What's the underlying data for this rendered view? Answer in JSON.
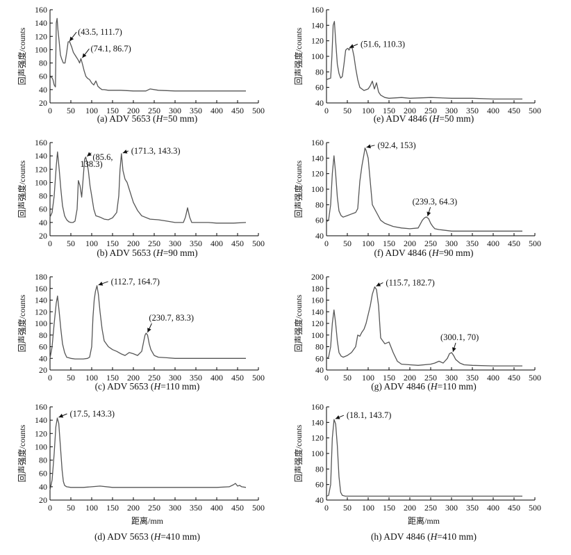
{
  "chart_data": [
    {
      "type": "line",
      "caption": {
        "prefix": "(a) ADV 5653 (",
        "var": "H",
        "suffix": "=50 mm)"
      },
      "ylabel": "回声强度/counts",
      "xlabel": "",
      "xlim": [
        0,
        500
      ],
      "ylim": [
        20,
        160
      ],
      "xticks": [
        "0",
        "50",
        "100",
        "150",
        "200",
        "250",
        "300",
        "350",
        "400",
        "450",
        "500"
      ],
      "yticks": [
        "20",
        "40",
        "60",
        "80",
        "100",
        "120",
        "140",
        "160"
      ],
      "series": [
        {
          "name": "echo",
          "x": [
            0,
            3,
            7,
            10,
            13,
            15,
            17,
            19,
            22,
            25,
            28,
            32,
            36,
            40,
            43.5,
            47,
            52,
            56,
            60,
            64,
            68,
            71,
            74.1,
            78,
            82,
            86,
            90,
            95,
            100,
            105,
            110,
            115,
            120,
            125,
            130,
            140,
            150,
            170,
            200,
            230,
            240,
            260,
            300,
            350,
            400,
            440,
            470
          ],
          "y": [
            57,
            60,
            55,
            47,
            44,
            140,
            147,
            130,
            112,
            92,
            86,
            80,
            80,
            96,
            111.7,
            112,
            104,
            96,
            92,
            88,
            84,
            80,
            86.7,
            78,
            68,
            60,
            57,
            55,
            50,
            47,
            53,
            45,
            42,
            40,
            40,
            39,
            39,
            39,
            38,
            38,
            41,
            39,
            38,
            38,
            38,
            38,
            38
          ]
        }
      ],
      "annotations": [
        {
          "label": "(43.5, 111.7)",
          "x": 43.5,
          "y": 111.7
        },
        {
          "label": "(74.1, 86.7)",
          "x": 74.1,
          "y": 86.7
        }
      ]
    },
    {
      "type": "line",
      "caption": {
        "prefix": "(b) ADV 5653 (",
        "var": "H",
        "suffix": "=90 mm)"
      },
      "ylabel": "回声强度/counts",
      "xlabel": "",
      "xlim": [
        0,
        500
      ],
      "ylim": [
        20,
        160
      ],
      "xticks": [
        "0",
        "50",
        "100",
        "150",
        "200",
        "250",
        "300",
        "350",
        "400",
        "450",
        "500"
      ],
      "yticks": [
        "20",
        "40",
        "60",
        "80",
        "100",
        "120",
        "140",
        "160"
      ],
      "series": [
        {
          "name": "echo",
          "x": [
            0,
            5,
            10,
            15,
            18,
            22,
            26,
            30,
            35,
            40,
            45,
            50,
            55,
            60,
            65,
            68,
            72,
            76,
            80,
            83,
            85.6,
            88,
            92,
            96,
            100,
            105,
            110,
            120,
            130,
            140,
            150,
            160,
            165,
            168,
            171.3,
            175,
            180,
            185,
            190,
            195,
            200,
            210,
            220,
            240,
            260,
            280,
            300,
            320,
            325,
            330,
            335,
            340,
            360,
            380,
            400,
            440,
            470
          ],
          "y": [
            48,
            55,
            80,
            125,
            146,
            120,
            90,
            65,
            50,
            44,
            41,
            40,
            40,
            42,
            60,
            103,
            95,
            78,
            110,
            135,
            138.3,
            132,
            118,
            95,
            80,
            60,
            50,
            48,
            45,
            44,
            47,
            55,
            80,
            120,
            143.3,
            118,
            105,
            100,
            90,
            80,
            70,
            58,
            50,
            45,
            44,
            42,
            40,
            40,
            48,
            62,
            48,
            40,
            40,
            40,
            39,
            39,
            40
          ]
        }
      ],
      "annotations": [
        {
          "label": "(85.6,",
          "x": 85.6,
          "y": 138.3
        },
        {
          "label": "138.3)",
          "x": 85.6,
          "y": 138.3
        },
        {
          "label": "(171.3, 143.3)",
          "x": 171.3,
          "y": 143.3
        }
      ]
    },
    {
      "type": "line",
      "caption": {
        "prefix": "(c) ADV 5653 (",
        "var": "H",
        "suffix": "=110 mm)"
      },
      "ylabel": "回声强度/counts",
      "xlabel": "",
      "xlim": [
        0,
        500
      ],
      "ylim": [
        20,
        180
      ],
      "xticks": [
        "0",
        "50",
        "100",
        "150",
        "200",
        "250",
        "300",
        "350",
        "400",
        "450",
        "500"
      ],
      "yticks": [
        "20",
        "40",
        "60",
        "80",
        "100",
        "120",
        "140",
        "160",
        "180"
      ],
      "series": [
        {
          "name": "echo",
          "x": [
            0,
            5,
            10,
            15,
            18,
            22,
            26,
            30,
            35,
            40,
            50,
            60,
            70,
            80,
            90,
            95,
            100,
            103,
            106,
            109,
            112.7,
            116,
            120,
            125,
            130,
            140,
            150,
            160,
            170,
            180,
            190,
            200,
            210,
            220,
            225,
            228,
            230.7,
            234,
            238,
            242,
            250,
            260,
            280,
            300,
            350,
            400,
            440,
            470
          ],
          "y": [
            40,
            60,
            100,
            135,
            147,
            120,
            90,
            65,
            50,
            42,
            40,
            39,
            39,
            39,
            40,
            42,
            60,
            110,
            140,
            155,
            164.7,
            150,
            120,
            90,
            70,
            60,
            55,
            52,
            48,
            45,
            50,
            48,
            45,
            52,
            70,
            80,
            83.3,
            80,
            65,
            55,
            45,
            42,
            41,
            40,
            40,
            40,
            40,
            40
          ]
        }
      ],
      "annotations": [
        {
          "label": "(112.7, 164.7)",
          "x": 112.7,
          "y": 164.7
        },
        {
          "label": "(230.7, 83.3)",
          "x": 230.7,
          "y": 83.3
        }
      ]
    },
    {
      "type": "line",
      "caption": {
        "prefix": "(d) ADV 5653 (",
        "var": "H",
        "suffix": "=410 mm)"
      },
      "ylabel": "回声强度/counts",
      "xlabel": "距离/mm",
      "xlim": [
        0,
        500
      ],
      "ylim": [
        20,
        160
      ],
      "xticks": [
        "0",
        "50",
        "100",
        "150",
        "200",
        "250",
        "300",
        "350",
        "400",
        "450",
        "500"
      ],
      "yticks": [
        "20",
        "40",
        "60",
        "80",
        "100",
        "120",
        "140",
        "160"
      ],
      "series": [
        {
          "name": "echo",
          "x": [
            0,
            5,
            10,
            14,
            17.5,
            21,
            25,
            29,
            32,
            35,
            40,
            50,
            60,
            80,
            100,
            120,
            150,
            200,
            250,
            300,
            350,
            400,
            430,
            440,
            445,
            450,
            455,
            460,
            470
          ],
          "y": [
            35,
            50,
            90,
            130,
            143.3,
            135,
            100,
            65,
            48,
            42,
            40,
            39,
            39,
            39,
            40,
            41,
            39,
            39,
            39,
            39,
            39,
            39,
            40,
            43,
            45,
            41,
            42,
            40,
            39
          ]
        }
      ],
      "annotations": [
        {
          "label": "(17.5, 143.3)",
          "x": 17.5,
          "y": 143.3
        }
      ]
    },
    {
      "type": "line",
      "caption": {
        "prefix": "(e) ADV 4846 (",
        "var": "H",
        "suffix": "=50 mm)"
      },
      "ylabel": "回声强度/counts",
      "xlabel": "",
      "xlim": [
        0,
        500
      ],
      "ylim": [
        40,
        160
      ],
      "xticks": [
        "0",
        "50",
        "100",
        "150",
        "200",
        "250",
        "300",
        "350",
        "400",
        "450",
        "500"
      ],
      "yticks": [
        "40",
        "60",
        "80",
        "100",
        "120",
        "140",
        "160"
      ],
      "series": [
        {
          "name": "echo",
          "x": [
            0,
            5,
            10,
            13,
            16,
            19,
            22,
            26,
            30,
            34,
            38,
            42,
            46,
            50,
            51.6,
            54,
            58,
            62,
            66,
            70,
            75,
            80,
            90,
            100,
            105,
            110,
            115,
            120,
            125,
            130,
            140,
            150,
            180,
            200,
            250,
            300,
            350,
            400,
            440,
            470
          ],
          "y": [
            70,
            71,
            72,
            100,
            140,
            145,
            120,
            90,
            78,
            72,
            74,
            90,
            108,
            110,
            110.3,
            108,
            112,
            110,
            100,
            85,
            70,
            60,
            56,
            58,
            62,
            68,
            58,
            66,
            54,
            50,
            47,
            46,
            47,
            46,
            47,
            46,
            46,
            45,
            45,
            45
          ]
        }
      ],
      "annotations": [
        {
          "label": "(51.6, 110.3)",
          "x": 51.6,
          "y": 110.3
        }
      ]
    },
    {
      "type": "line",
      "caption": {
        "prefix": "(f) ADV 4846 (",
        "var": "H",
        "suffix": "=90 mm)"
      },
      "ylabel": "回声强度/counts",
      "xlabel": "",
      "xlim": [
        0,
        500
      ],
      "ylim": [
        40,
        160
      ],
      "xticks": [
        "0",
        "50",
        "100",
        "150",
        "200",
        "250",
        "300",
        "350",
        "400",
        "450",
        "500"
      ],
      "yticks": [
        "40",
        "60",
        "80",
        "100",
        "120",
        "140",
        "160"
      ],
      "series": [
        {
          "name": "echo",
          "x": [
            0,
            5,
            10,
            14,
            18,
            22,
            26,
            30,
            35,
            40,
            50,
            60,
            70,
            75,
            80,
            85,
            90,
            92.4,
            95,
            100,
            105,
            110,
            115,
            120,
            130,
            140,
            150,
            160,
            180,
            200,
            220,
            225,
            230,
            235,
            239.3,
            245,
            250,
            255,
            260,
            270,
            300,
            350,
            400,
            440,
            470
          ],
          "y": [
            58,
            60,
            80,
            120,
            143,
            120,
            90,
            72,
            66,
            64,
            66,
            68,
            70,
            75,
            110,
            130,
            145,
            153,
            150,
            140,
            110,
            80,
            75,
            70,
            60,
            56,
            54,
            52,
            50,
            49,
            50,
            55,
            60,
            63,
            64.3,
            62,
            56,
            52,
            49,
            48,
            46,
            46,
            46,
            46,
            46
          ]
        }
      ],
      "annotations": [
        {
          "label": "(92.4, 153)",
          "x": 92.4,
          "y": 153
        },
        {
          "label": "(239.3, 64.3)",
          "x": 239.3,
          "y": 64.3
        }
      ]
    },
    {
      "type": "line",
      "caption": {
        "prefix": "(g) ADV 4846 (",
        "var": "H",
        "suffix": "=110 mm)"
      },
      "ylabel": "回声强度/counts",
      "xlabel": "",
      "xlim": [
        0,
        500
      ],
      "ylim": [
        40,
        200
      ],
      "xticks": [
        "0",
        "50",
        "100",
        "150",
        "200",
        "250",
        "300",
        "350",
        "400",
        "450",
        "500"
      ],
      "yticks": [
        "40",
        "60",
        "80",
        "100",
        "120",
        "140",
        "160",
        "180",
        "200"
      ],
      "series": [
        {
          "name": "echo",
          "x": [
            0,
            5,
            10,
            14,
            18,
            22,
            26,
            30,
            35,
            40,
            50,
            60,
            70,
            75,
            80,
            85,
            90,
            95,
            100,
            105,
            110,
            115.7,
            120,
            125,
            130,
            135,
            140,
            150,
            160,
            170,
            180,
            200,
            220,
            250,
            260,
            270,
            280,
            290,
            295,
            300.1,
            305,
            310,
            320,
            330,
            350,
            400,
            440,
            470
          ],
          "y": [
            60,
            62,
            80,
            120,
            143,
            120,
            90,
            70,
            64,
            62,
            65,
            70,
            80,
            100,
            98,
            105,
            110,
            120,
            135,
            150,
            170,
            182.7,
            178,
            150,
            95,
            90,
            85,
            88,
            70,
            55,
            50,
            49,
            48,
            50,
            52,
            55,
            52,
            60,
            68,
            70,
            65,
            58,
            52,
            49,
            48,
            47,
            47,
            47
          ]
        }
      ],
      "annotations": [
        {
          "label": "(115.7, 182.7)",
          "x": 115.7,
          "y": 182.7
        },
        {
          "label": "(300.1, 70)",
          "x": 300.1,
          "y": 70
        }
      ]
    },
    {
      "type": "line",
      "caption": {
        "prefix": "(h) ADV 4846 (",
        "var": "H",
        "suffix": "=410 mm)"
      },
      "ylabel": "回声强度/counts",
      "xlabel": "距离/mm",
      "xlim": [
        0,
        500
      ],
      "ylim": [
        40,
        160
      ],
      "xticks": [
        "0",
        "50",
        "100",
        "150",
        "200",
        "250",
        "300",
        "350",
        "400",
        "450",
        "500"
      ],
      "yticks": [
        "40",
        "60",
        "80",
        "100",
        "120",
        "140",
        "160"
      ],
      "series": [
        {
          "name": "echo",
          "x": [
            0,
            5,
            10,
            14,
            18.1,
            22,
            26,
            30,
            34,
            38,
            45,
            60,
            80,
            100,
            150,
            200,
            250,
            300,
            350,
            400,
            440,
            470
          ],
          "y": [
            45,
            46,
            60,
            120,
            143.7,
            138,
            110,
            70,
            50,
            46,
            45,
            45,
            45,
            45,
            45,
            45,
            45,
            45,
            45,
            45,
            45,
            45
          ]
        }
      ],
      "annotations": [
        {
          "label": "(18.1, 143.7)",
          "x": 18.1,
          "y": 143.7
        }
      ]
    }
  ]
}
